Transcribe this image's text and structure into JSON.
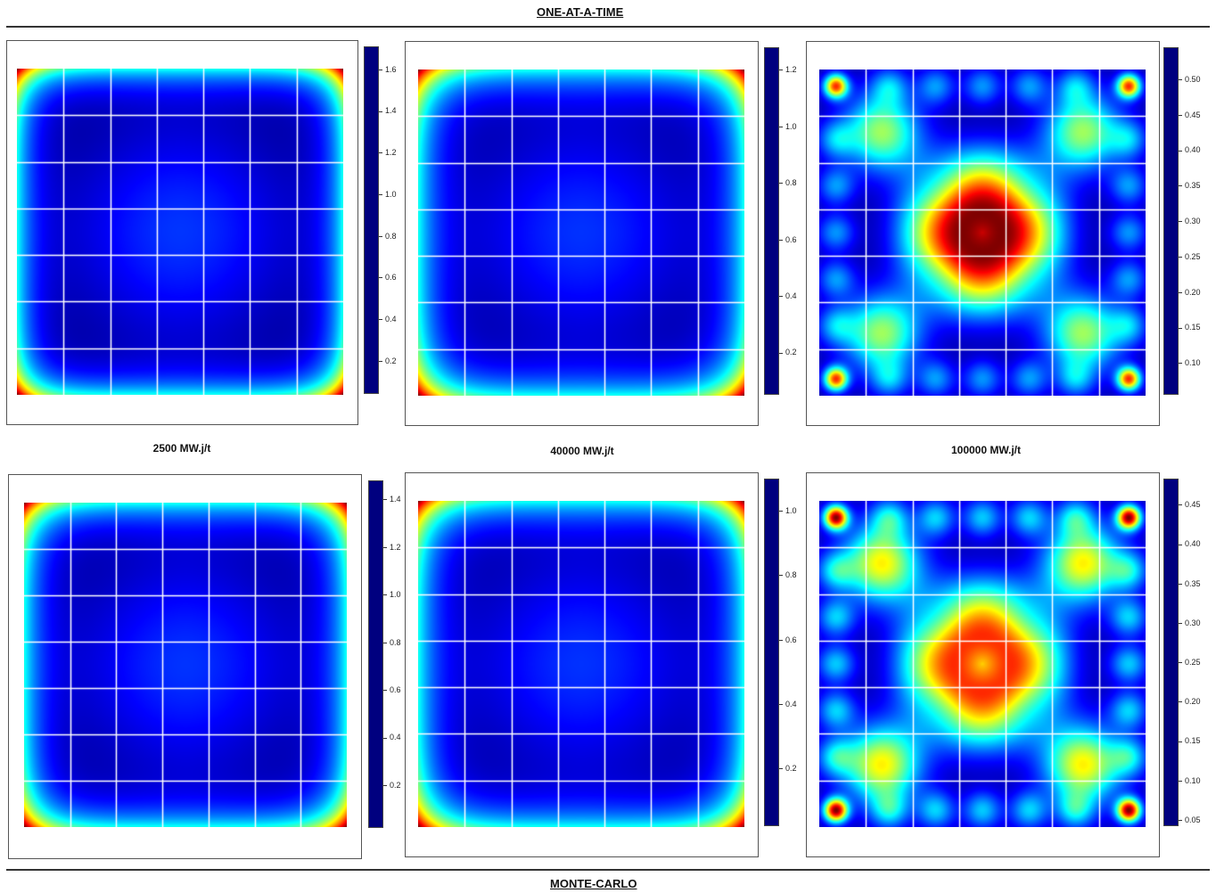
{
  "titles": {
    "top": "ONE-AT-A-TIME",
    "bottom": "MONTE-CARLO"
  },
  "burnup_labels": [
    "2500 MW.j/t",
    "40000 MW.j/t",
    "100000 MW.j/t"
  ],
  "colors": {
    "colormap": [
      "#00007f",
      "#0000ff",
      "#007fff",
      "#00ffff",
      "#7fff7f",
      "#ffff00",
      "#ff7f00",
      "#ff0000",
      "#7f0000"
    ],
    "grid_lines": "#ffffff",
    "rules": "#333333"
  },
  "chart_data": [
    {
      "type": "heatmap",
      "method": "ONE-AT-A-TIME",
      "burnup": "2500 MW.j/t",
      "grid": "7x7 fuel assemblies",
      "pattern": "edge-peaked",
      "colorbar_ticks": [
        "0.2",
        "0.4",
        "0.6",
        "0.8",
        "1.0",
        "1.2",
        "1.4",
        "1.6"
      ],
      "zlim": [
        0.04,
        1.71
      ]
    },
    {
      "type": "heatmap",
      "method": "ONE-AT-A-TIME",
      "burnup": "40000 MW.j/t",
      "grid": "7x7 fuel assemblies",
      "pattern": "edge-peaked",
      "colorbar_ticks": [
        "0.2",
        "0.4",
        "0.6",
        "0.8",
        "1.0",
        "1.2"
      ],
      "zlim": [
        0.05,
        1.28
      ]
    },
    {
      "type": "heatmap",
      "method": "ONE-AT-A-TIME",
      "burnup": "100000 MW.j/t",
      "grid": "7x7 fuel assemblies",
      "pattern": "center-and-corner-peaked",
      "colorbar_ticks": [
        "0.10",
        "0.15",
        "0.20",
        "0.25",
        "0.30",
        "0.35",
        "0.40",
        "0.45",
        "0.50"
      ],
      "zlim": [
        0.055,
        0.545
      ]
    },
    {
      "type": "heatmap",
      "method": "MONTE-CARLO",
      "burnup": "2500 MW.j/t",
      "grid": "7x7 fuel assemblies",
      "pattern": "edge-peaked",
      "colorbar_ticks": [
        "0.2",
        "0.4",
        "0.6",
        "0.8",
        "1.0",
        "1.2",
        "1.4"
      ],
      "zlim": [
        0.02,
        1.48
      ]
    },
    {
      "type": "heatmap",
      "method": "MONTE-CARLO",
      "burnup": "40000 MW.j/t",
      "grid": "7x7 fuel assemblies",
      "pattern": "edge-peaked",
      "colorbar_ticks": [
        "0.2",
        "0.4",
        "0.6",
        "0.8",
        "1.0"
      ],
      "zlim": [
        0.02,
        1.1
      ]
    },
    {
      "type": "heatmap",
      "method": "MONTE-CARLO",
      "burnup": "100000 MW.j/t",
      "grid": "7x7 fuel assemblies",
      "pattern": "center-and-corner-peaked",
      "colorbar_ticks": [
        "0.05",
        "0.10",
        "0.15",
        "0.20",
        "0.25",
        "0.30",
        "0.35",
        "0.40",
        "0.45"
      ],
      "zlim": [
        0.042,
        0.483
      ]
    }
  ]
}
